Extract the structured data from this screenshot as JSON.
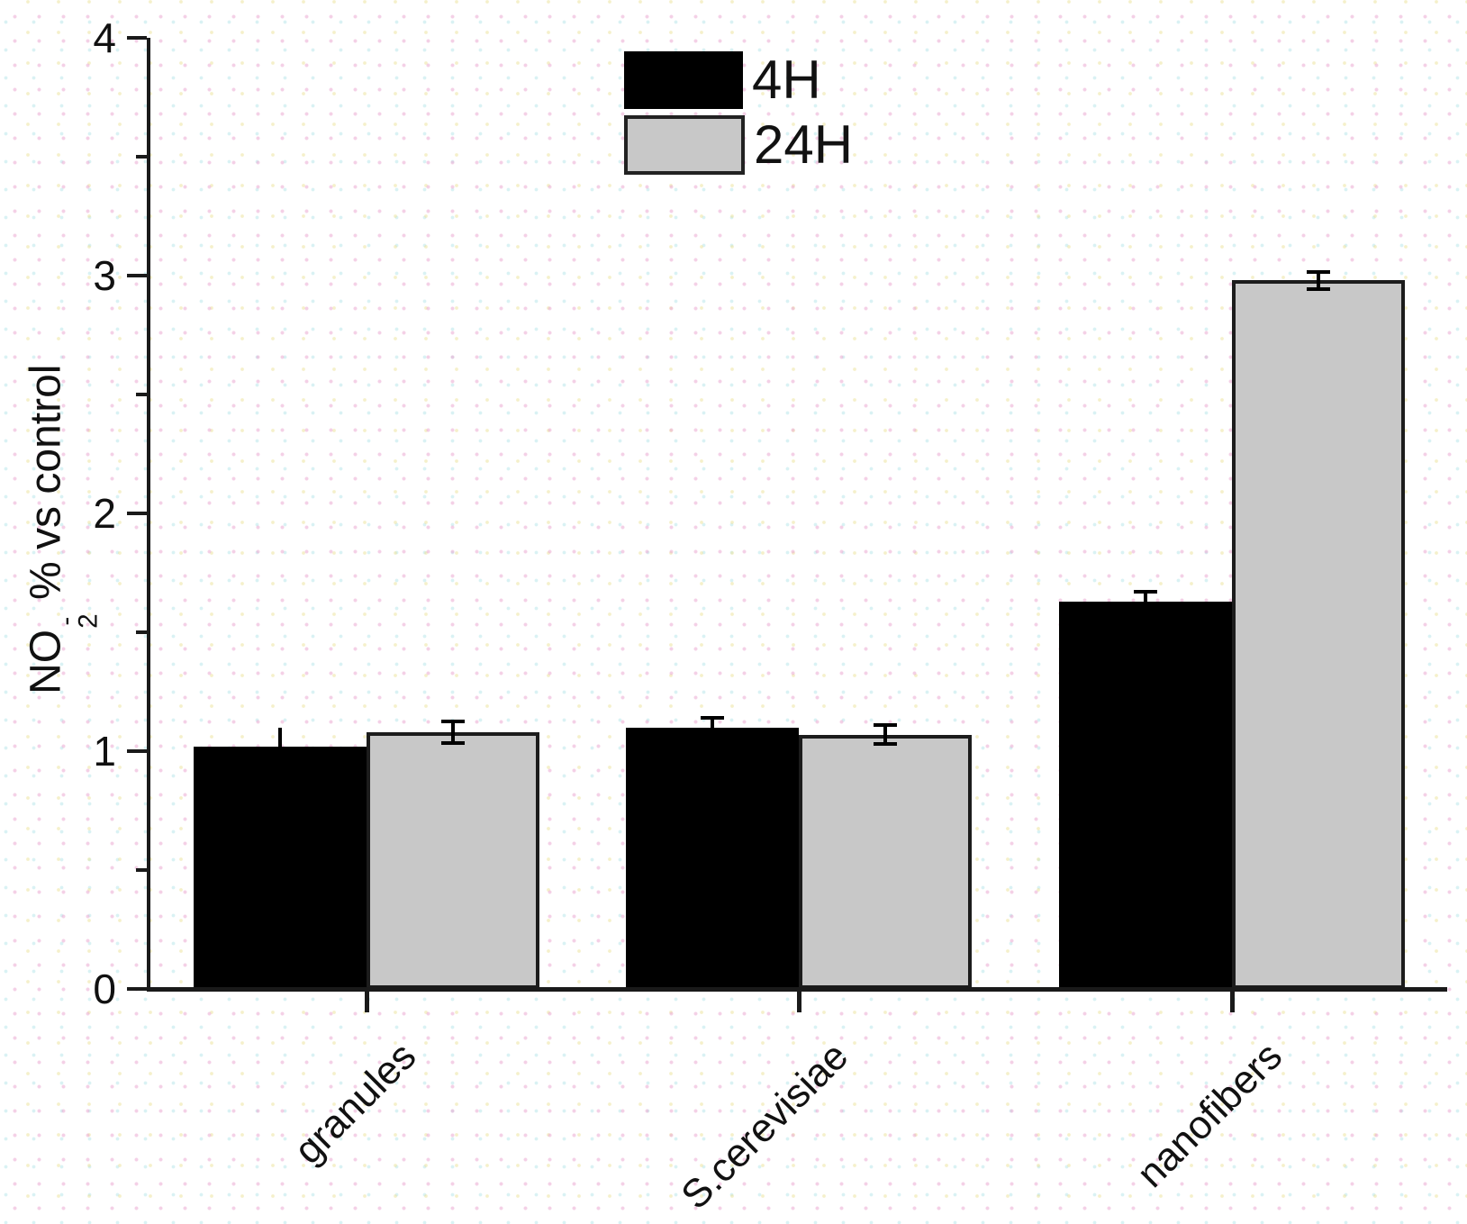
{
  "chart_data": {
    "type": "bar",
    "title": "",
    "categories": [
      "granules",
      "S.cerevisiae",
      "nanofibers"
    ],
    "series": [
      {
        "name": "4H",
        "color": "#000000",
        "values": [
          1.02,
          1.1,
          1.63
        ],
        "errors": [
          0.08,
          0.04,
          0.04
        ],
        "error_caps": [
          false,
          true,
          true
        ]
      },
      {
        "name": "24H",
        "color": "#c8c8c8",
        "values": [
          1.08,
          1.07,
          2.98
        ],
        "errors": [
          0.045,
          0.04,
          0.035
        ],
        "error_caps": [
          true,
          true,
          true
        ]
      }
    ],
    "ylabel": "NO₂⁻ % vs control",
    "ylabel_parts": {
      "prefix": "NO",
      "sup": "-",
      "sub": "2",
      "suffix": "% vs control"
    },
    "xlabel": "",
    "ylim": [
      0,
      4
    ],
    "yticks": [
      "0",
      "1",
      "2",
      "3",
      "4"
    ],
    "minor_ytick_values": [
      0.5,
      1.5,
      2.5,
      3.5
    ],
    "legend": {
      "position": "top-center",
      "entries": [
        "4H",
        "24H"
      ]
    },
    "grid": false,
    "error_bars": true,
    "bar_outline_color": "#1c1c1c",
    "axis_color": "#1a1a1a"
  }
}
